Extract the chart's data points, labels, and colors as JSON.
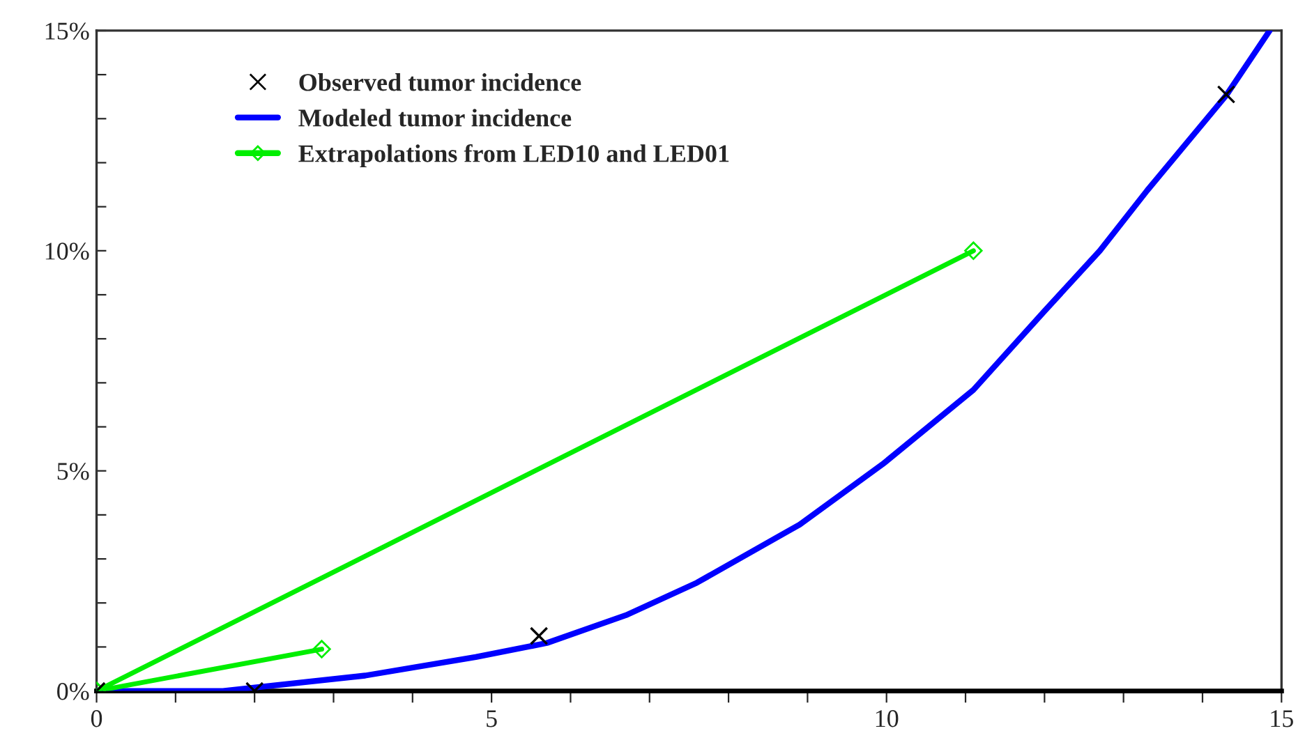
{
  "chart_data": {
    "type": "line",
    "xlim": [
      0,
      15
    ],
    "ylim": [
      0,
      15
    ],
    "xticks": [
      0,
      {
        "value": 1,
        "label": null
      },
      {
        "value": 2,
        "label": null
      },
      {
        "value": 3,
        "label": null
      },
      {
        "value": 4,
        "label": null
      },
      5,
      {
        "value": 6,
        "label": null
      },
      {
        "value": 7,
        "label": null
      },
      {
        "value": 8,
        "label": null
      },
      {
        "value": 9,
        "label": null
      },
      10,
      {
        "value": 11,
        "label": null
      },
      {
        "value": 12,
        "label": null
      },
      {
        "value": 13,
        "label": null
      },
      {
        "value": 14,
        "label": null
      },
      15
    ],
    "yticks": [
      {
        "value": 0,
        "label": "0%"
      },
      {
        "value": 1,
        "label": null
      },
      {
        "value": 2,
        "label": null
      },
      {
        "value": 3,
        "label": null
      },
      {
        "value": 4,
        "label": null
      },
      {
        "value": 5,
        "label": "5%"
      },
      {
        "value": 6,
        "label": null
      },
      {
        "value": 7,
        "label": null
      },
      {
        "value": 8,
        "label": null
      },
      {
        "value": 9,
        "label": null
      },
      {
        "value": 10,
        "label": "10%"
      },
      {
        "value": 11,
        "label": null
      },
      {
        "value": 12,
        "label": null
      },
      {
        "value": 13,
        "label": null
      },
      {
        "value": 14,
        "label": null
      },
      {
        "value": 15,
        "label": "15%"
      }
    ],
    "grid": false,
    "legend": "top left",
    "series": [
      {
        "name": "Observed tumor incidence",
        "type": "scatter",
        "marker": "cross",
        "color": "#000000",
        "x": [
          0,
          2,
          5.6,
          14.3
        ],
        "values": [
          0,
          0,
          1.25,
          13.55
        ]
      },
      {
        "name": "Modeled tumor incidence",
        "marker": "none",
        "color": "#0000ff",
        "x": [
          0,
          1.6,
          3.4,
          4.8,
          5.7,
          6.7,
          7.6,
          8.9,
          9.95,
          11.1,
          12.0,
          12.7,
          13.3,
          14.3,
          14.85
        ],
        "values": [
          0,
          0,
          0.35,
          0.77,
          1.09,
          1.72,
          2.46,
          3.78,
          5.15,
          6.84,
          8.63,
          10.0,
          11.37,
          13.53,
          15.0
        ]
      },
      {
        "name": "Extrapolations from LED10 and LED01",
        "marker": "diamond",
        "color": "#00ee00",
        "x": [
          0,
          2.85
        ],
        "values": [
          0,
          0.95
        ]
      },
      {
        "marker": "diamond",
        "color": "#00ee00",
        "x": [
          0,
          11.1
        ],
        "values": [
          0,
          10
        ]
      }
    ]
  }
}
